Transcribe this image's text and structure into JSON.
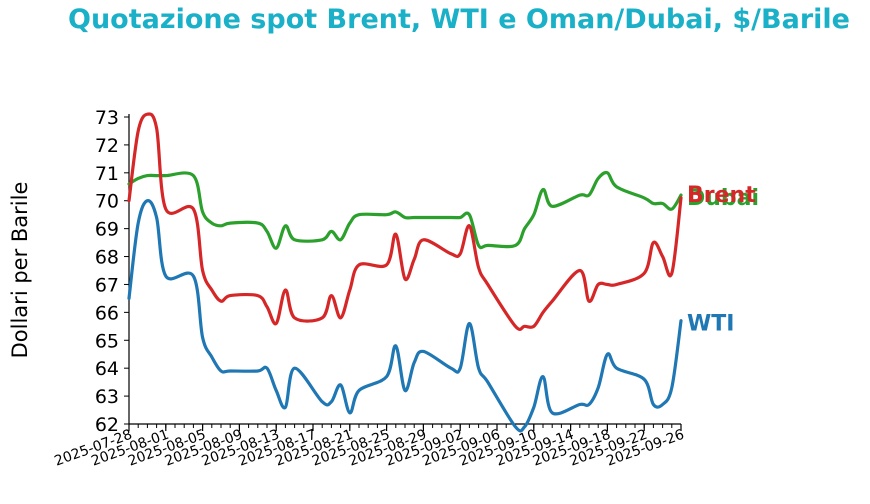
{
  "chart_data": {
    "type": "line",
    "title": "Quotazione spot Brent, WTI e Oman/Dubai, $/Barile",
    "xlabel": "",
    "ylabel": "Dollari per Barile",
    "ylim": [
      62,
      73
    ],
    "yticks": [
      62,
      63,
      64,
      65,
      66,
      67,
      68,
      69,
      70,
      71,
      72,
      73
    ],
    "xticks": [
      "2025-07-28",
      "2025-08-01",
      "2025-08-05",
      "2025-08-09",
      "2025-08-13",
      "2025-08-17",
      "2025-08-21",
      "2025-08-25",
      "2025-08-29",
      "2025-09-02",
      "2025-09-06",
      "2025-09-10",
      "2025-09-14",
      "2025-09-18",
      "2025-09-22",
      "2025-09-26"
    ],
    "grid": false,
    "legend": "labels at line ends",
    "x": [
      "2025-07-28",
      "2025-07-29",
      "2025-07-30",
      "2025-07-31",
      "2025-08-01",
      "2025-08-04",
      "2025-08-05",
      "2025-08-06",
      "2025-08-07",
      "2025-08-08",
      "2025-08-11",
      "2025-08-12",
      "2025-08-13",
      "2025-08-14",
      "2025-08-15",
      "2025-08-18",
      "2025-08-19",
      "2025-08-20",
      "2025-08-21",
      "2025-08-22",
      "2025-08-25",
      "2025-08-26",
      "2025-08-27",
      "2025-08-28",
      "2025-08-29",
      "2025-09-01",
      "2025-09-02",
      "2025-09-03",
      "2025-09-04",
      "2025-09-05",
      "2025-09-08",
      "2025-09-09",
      "2025-09-10",
      "2025-09-11",
      "2025-09-12",
      "2025-09-15",
      "2025-09-16",
      "2025-09-17",
      "2025-09-18",
      "2025-09-19",
      "2025-09-22",
      "2025-09-23",
      "2025-09-24",
      "2025-09-25",
      "2025-09-26"
    ],
    "series": [
      {
        "name": "Dubai",
        "color": "#2ca02c",
        "values": [
          70.6,
          70.8,
          70.9,
          70.9,
          70.9,
          70.9,
          69.6,
          69.2,
          69.1,
          69.2,
          69.2,
          68.9,
          68.3,
          69.1,
          68.6,
          68.6,
          68.9,
          68.6,
          69.2,
          69.5,
          69.5,
          69.6,
          69.4,
          69.4,
          69.4,
          69.4,
          69.4,
          69.5,
          68.4,
          68.4,
          68.4,
          69.0,
          69.5,
          70.4,
          69.8,
          70.2,
          70.2,
          70.8,
          71.0,
          70.5,
          70.1,
          69.9,
          69.9,
          69.7,
          70.2
        ]
      },
      {
        "name": "Brent",
        "color": "#d62728",
        "values": [
          70.0,
          72.5,
          73.1,
          72.6,
          69.7,
          69.7,
          67.5,
          66.8,
          66.4,
          66.6,
          66.6,
          66.2,
          65.6,
          66.8,
          65.8,
          65.8,
          66.6,
          65.8,
          66.8,
          67.7,
          67.7,
          68.8,
          67.2,
          67.9,
          68.6,
          68.1,
          68.1,
          69.1,
          67.6,
          67.0,
          65.5,
          65.5,
          65.5,
          66.0,
          66.4,
          67.5,
          66.4,
          67.0,
          67.0,
          67.0,
          67.4,
          68.5,
          68.0,
          67.4,
          70.1
        ]
      },
      {
        "name": "WTI",
        "color": "#1f77b4",
        "values": [
          66.5,
          69.2,
          70.0,
          69.4,
          67.3,
          67.3,
          65.1,
          64.4,
          63.9,
          63.9,
          63.9,
          64.0,
          63.2,
          62.6,
          64.0,
          62.8,
          62.8,
          63.4,
          62.4,
          63.2,
          63.7,
          64.8,
          63.2,
          64.2,
          64.6,
          64.0,
          64.0,
          65.6,
          64.0,
          63.5,
          61.9,
          61.9,
          62.6,
          63.7,
          62.4,
          62.7,
          62.7,
          63.3,
          64.5,
          64.0,
          63.6,
          62.7,
          62.7,
          63.3,
          65.7
        ]
      }
    ]
  }
}
